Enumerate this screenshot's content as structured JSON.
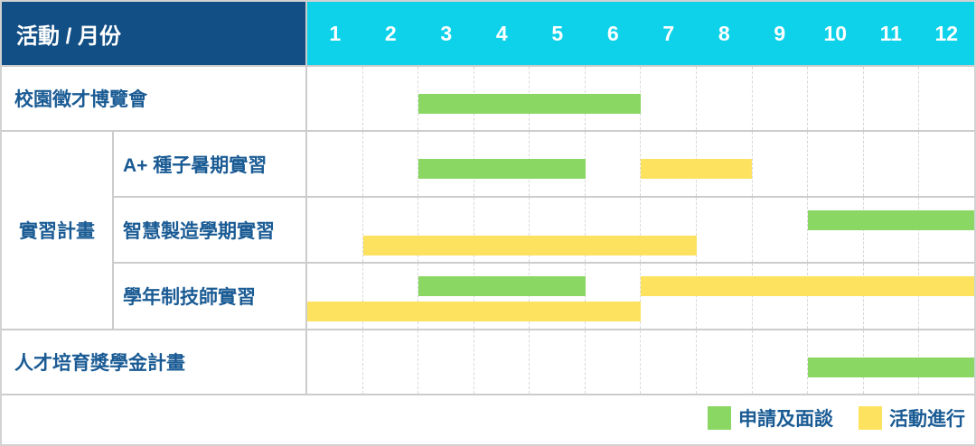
{
  "header": {
    "title": "活動 / 月份"
  },
  "colors": {
    "header_dark_blue": "#124F85",
    "header_cyan": "#0ED2EA",
    "label_text_blue": "#1A5B94",
    "grid_line": "#d8d8d8",
    "cell_border": "#cccccc"
  },
  "chart_data": {
    "type": "gantt",
    "months": [
      "1",
      "2",
      "3",
      "4",
      "5",
      "6",
      "7",
      "8",
      "9",
      "10",
      "11",
      "12"
    ],
    "legend": [
      {
        "label": "申請及面談",
        "color": "#8AD763"
      },
      {
        "label": "活動進行",
        "color": "#FDE25F"
      }
    ],
    "group": {
      "label": "實習計畫"
    },
    "rows": [
      {
        "label": "校園徵才博覽會",
        "group": null,
        "bars": [
          {
            "status": "申請及面談",
            "start": 3,
            "end": 6,
            "lane": "single"
          }
        ]
      },
      {
        "label": "A+ 種子暑期實習",
        "group": "實習計畫",
        "bars": [
          {
            "status": "申請及面談",
            "start": 3,
            "end": 5,
            "lane": "single"
          },
          {
            "status": "活動進行",
            "start": 7,
            "end": 8,
            "lane": "single"
          }
        ]
      },
      {
        "label": "智慧製造學期實習",
        "group": "實習計畫",
        "bars": [
          {
            "status": "申請及面談",
            "start": 10,
            "end": 12,
            "lane": "top"
          },
          {
            "status": "活動進行",
            "start": 2,
            "end": 7,
            "lane": "bottom"
          }
        ]
      },
      {
        "label": "學年制技師實習",
        "group": "實習計畫",
        "bars": [
          {
            "status": "申請及面談",
            "start": 3,
            "end": 5,
            "lane": "top"
          },
          {
            "status": "活動進行",
            "start": 7,
            "end": 12,
            "lane": "top"
          },
          {
            "status": "活動進行",
            "start": 1,
            "end": 6,
            "lane": "bottom"
          }
        ]
      },
      {
        "label": "人才培育獎學金計畫",
        "group": null,
        "bars": [
          {
            "status": "申請及面談",
            "start": 10,
            "end": 12,
            "lane": "single"
          }
        ]
      }
    ]
  }
}
